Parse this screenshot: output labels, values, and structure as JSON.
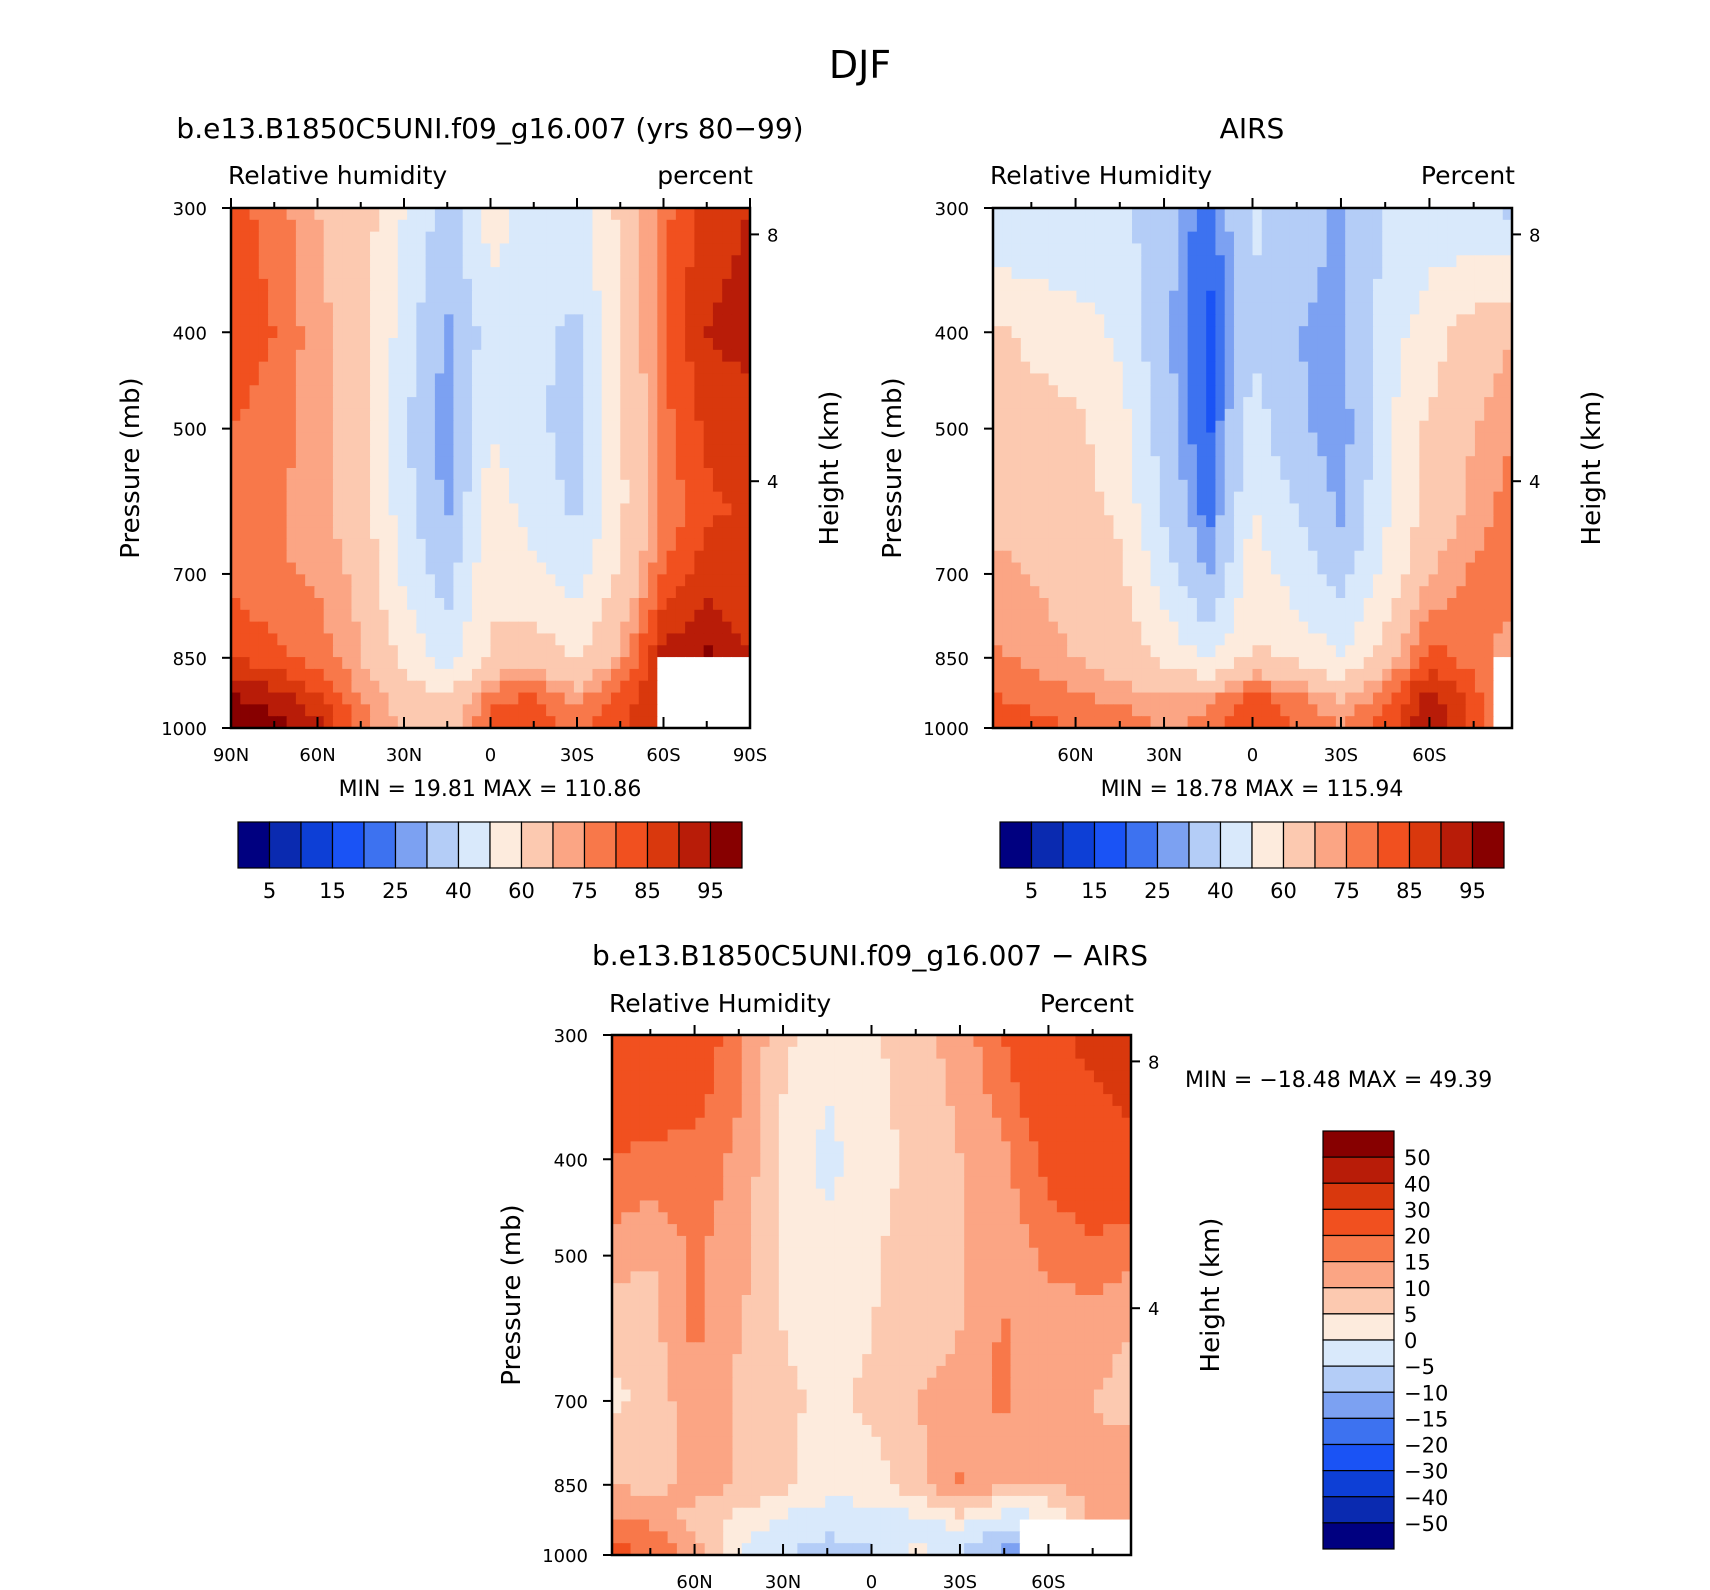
{
  "figure": {
    "title": "DJF"
  },
  "colors": {
    "rh": [
      "#000080",
      "#0a2ab0",
      "#0d3fd6",
      "#1a53f5",
      "#3d72f0",
      "#7ca1f2",
      "#b4cdf7",
      "#d9e9fb",
      "#fdebdd",
      "#fcc9b0",
      "#fba584",
      "#f8784a",
      "#f1501f",
      "#d9380d",
      "#b81c08",
      "#870000"
    ],
    "diff": [
      "#000080",
      "#0a2ab0",
      "#0d3fd6",
      "#1a53f5",
      "#3d72f0",
      "#7ca1f2",
      "#b4cdf7",
      "#d9e9fb",
      "#fdebdd",
      "#fcc9b0",
      "#fba584",
      "#f8784a",
      "#f1501f",
      "#d9380d",
      "#b81c08",
      "#870000"
    ]
  },
  "chart_data": [
    {
      "type": "heatmap",
      "title": "b.e13.B1850C5UNI.f09_g16.007 (yrs 80-99)",
      "left_label": "Relative humidity",
      "right_label": "percent",
      "ylabel": "Pressure (mb)",
      "y2label": "Height (km)",
      "ylim": [
        1000,
        300
      ],
      "y_ticks": [
        "300",
        "400",
        "500",
        "700",
        "850",
        "1000"
      ],
      "y2_ticks": [
        "8",
        "4"
      ],
      "x_ticks": [
        "90N",
        "60N",
        "30N",
        "0",
        "30S",
        "60S",
        "90S"
      ],
      "xlim": [
        90,
        -90
      ],
      "stats": {
        "min_label": "MIN =",
        "min": "19.81",
        "max_label": "MAX =",
        "max": "110.86"
      },
      "colorbar_labels": [
        "5",
        "15",
        "25",
        "40",
        "60",
        "75",
        "85",
        "95"
      ],
      "field": {
        "lats": [
          90,
          75,
          60,
          45,
          30,
          15,
          0,
          -15,
          -30,
          -45,
          -60,
          -75,
          -90
        ],
        "pressures": [
          300,
          400,
          500,
          600,
          700,
          850,
          925,
          1000
        ],
        "values": [
          [
            82,
            78,
            70,
            65,
            50,
            35,
            55,
            45,
            45,
            62,
            78,
            88,
            90
          ],
          [
            83,
            80,
            72,
            66,
            45,
            28,
            45,
            42,
            38,
            60,
            80,
            90,
            92
          ],
          [
            80,
            78,
            72,
            65,
            42,
            25,
            50,
            42,
            36,
            58,
            78,
            86,
            88
          ],
          [
            78,
            76,
            72,
            66,
            44,
            28,
            56,
            46,
            38,
            58,
            76,
            84,
            86
          ],
          [
            78,
            76,
            74,
            68,
            48,
            35,
            58,
            52,
            45,
            62,
            80,
            88,
            86
          ],
          [
            85,
            82,
            78,
            70,
            58,
            45,
            62,
            66,
            60,
            72,
            92,
            96,
            90
          ],
          [
            95,
            92,
            85,
            75,
            65,
            60,
            78,
            80,
            72,
            82,
            90,
            90,
            90
          ],
          [
            100,
            98,
            92,
            78,
            70,
            66,
            82,
            85,
            78,
            84,
            90,
            90,
            90
          ]
        ],
        "missing": [
          [
            850,
            -57,
            -90
          ]
        ]
      }
    },
    {
      "type": "heatmap",
      "title": "AIRS",
      "left_label": "Relative Humidity",
      "right_label": "Percent",
      "ylabel": "Pressure (mb)",
      "y2label": "Height (km)",
      "ylim": [
        1000,
        300
      ],
      "y_ticks": [
        "300",
        "400",
        "500",
        "700",
        "850",
        "1000"
      ],
      "y2_ticks": [
        "8",
        "4"
      ],
      "x_ticks": [
        "60N",
        "30N",
        "0",
        "30S",
        "60S"
      ],
      "xlim": [
        88,
        -88
      ],
      "stats": {
        "min_label": "MIN =",
        "min": "18.78",
        "max_label": "MAX =",
        "max": "115.94"
      },
      "colorbar_labels": [
        "5",
        "15",
        "25",
        "40",
        "60",
        "75",
        "85",
        "95"
      ],
      "field": {
        "lats": [
          88,
          75,
          60,
          45,
          30,
          15,
          0,
          -15,
          -30,
          -45,
          -60,
          -75,
          -88
        ],
        "pressures": [
          300,
          400,
          500,
          600,
          700,
          850,
          925,
          1000
        ],
        "values": [
          [
            42,
            40,
            40,
            42,
            35,
            20,
            42,
            35,
            28,
            40,
            45,
            42,
            38
          ],
          [
            62,
            58,
            55,
            48,
            32,
            18,
            38,
            30,
            28,
            45,
            55,
            65,
            70
          ],
          [
            66,
            64,
            62,
            55,
            35,
            18,
            45,
            32,
            25,
            48,
            62,
            70,
            74
          ],
          [
            68,
            66,
            64,
            58,
            38,
            22,
            50,
            40,
            28,
            48,
            64,
            72,
            78
          ],
          [
            72,
            70,
            66,
            62,
            45,
            28,
            56,
            45,
            36,
            52,
            70,
            76,
            80
          ],
          [
            76,
            74,
            70,
            66,
            58,
            48,
            62,
            58,
            50,
            66,
            82,
            78,
            70
          ],
          [
            80,
            78,
            76,
            72,
            70,
            72,
            82,
            76,
            68,
            78,
            92,
            82,
            72
          ],
          [
            84,
            82,
            80,
            80,
            74,
            78,
            86,
            80,
            76,
            82,
            96,
            84,
            74
          ]
        ],
        "missing": [
          [
            850,
            -82,
            -88
          ]
        ]
      }
    },
    {
      "type": "heatmap",
      "title": "b.e13.B1850C5UNI.f09_g16.007 - AIRS",
      "left_label": "Relative Humidity",
      "right_label": "Percent",
      "ylabel": "Pressure (mb)",
      "y2label": "Height (km)",
      "ylim": [
        1000,
        300
      ],
      "y_ticks": [
        "300",
        "400",
        "500",
        "700",
        "850",
        "1000"
      ],
      "y2_ticks": [
        "8",
        "4"
      ],
      "x_ticks": [
        "60N",
        "30N",
        "0",
        "30S",
        "60S"
      ],
      "xlim": [
        88,
        -88
      ],
      "stats": {
        "min_label": "MIN =",
        "min": "-18.48",
        "max_label": "MAX =",
        "max": "49.39"
      },
      "colorbar_labels": [
        "50",
        "40",
        "30",
        "20",
        "15",
        "10",
        "5",
        "0",
        "-5",
        "-10",
        "-15",
        "-20",
        "-30",
        "-40",
        "-50"
      ],
      "field": {
        "lats": [
          88,
          75,
          60,
          45,
          30,
          15,
          0,
          -15,
          -30,
          -45,
          -60,
          -75,
          -88
        ],
        "pressures": [
          300,
          400,
          500,
          600,
          700,
          850,
          925,
          1000
        ],
        "values": [
          [
            30,
            28,
            26,
            16,
            6,
            2,
            4,
            8,
            12,
            20,
            28,
            32,
            34
          ],
          [
            20,
            18,
            18,
            14,
            4,
            -2,
            3,
            6,
            10,
            14,
            22,
            26,
            28
          ],
          [
            12,
            10,
            16,
            12,
            4,
            2,
            4,
            8,
            10,
            12,
            16,
            18,
            16
          ],
          [
            6,
            8,
            16,
            10,
            5,
            3,
            5,
            8,
            10,
            16,
            12,
            12,
            10
          ],
          [
            4,
            6,
            14,
            9,
            6,
            4,
            6,
            10,
            12,
            16,
            10,
            10,
            8
          ],
          [
            10,
            8,
            12,
            10,
            6,
            2,
            2,
            8,
            16,
            10,
            10,
            12,
            14
          ],
          [
            16,
            14,
            8,
            3,
            -1,
            -3,
            -2,
            -2,
            2,
            -4,
            -2,
            12,
            14
          ],
          [
            22,
            20,
            14,
            -1,
            -4,
            -8,
            -6,
            2,
            -6,
            -12,
            -10,
            12,
            14
          ]
        ],
        "missing": [
          [
            925,
            -51,
            -88
          ]
        ]
      }
    }
  ]
}
